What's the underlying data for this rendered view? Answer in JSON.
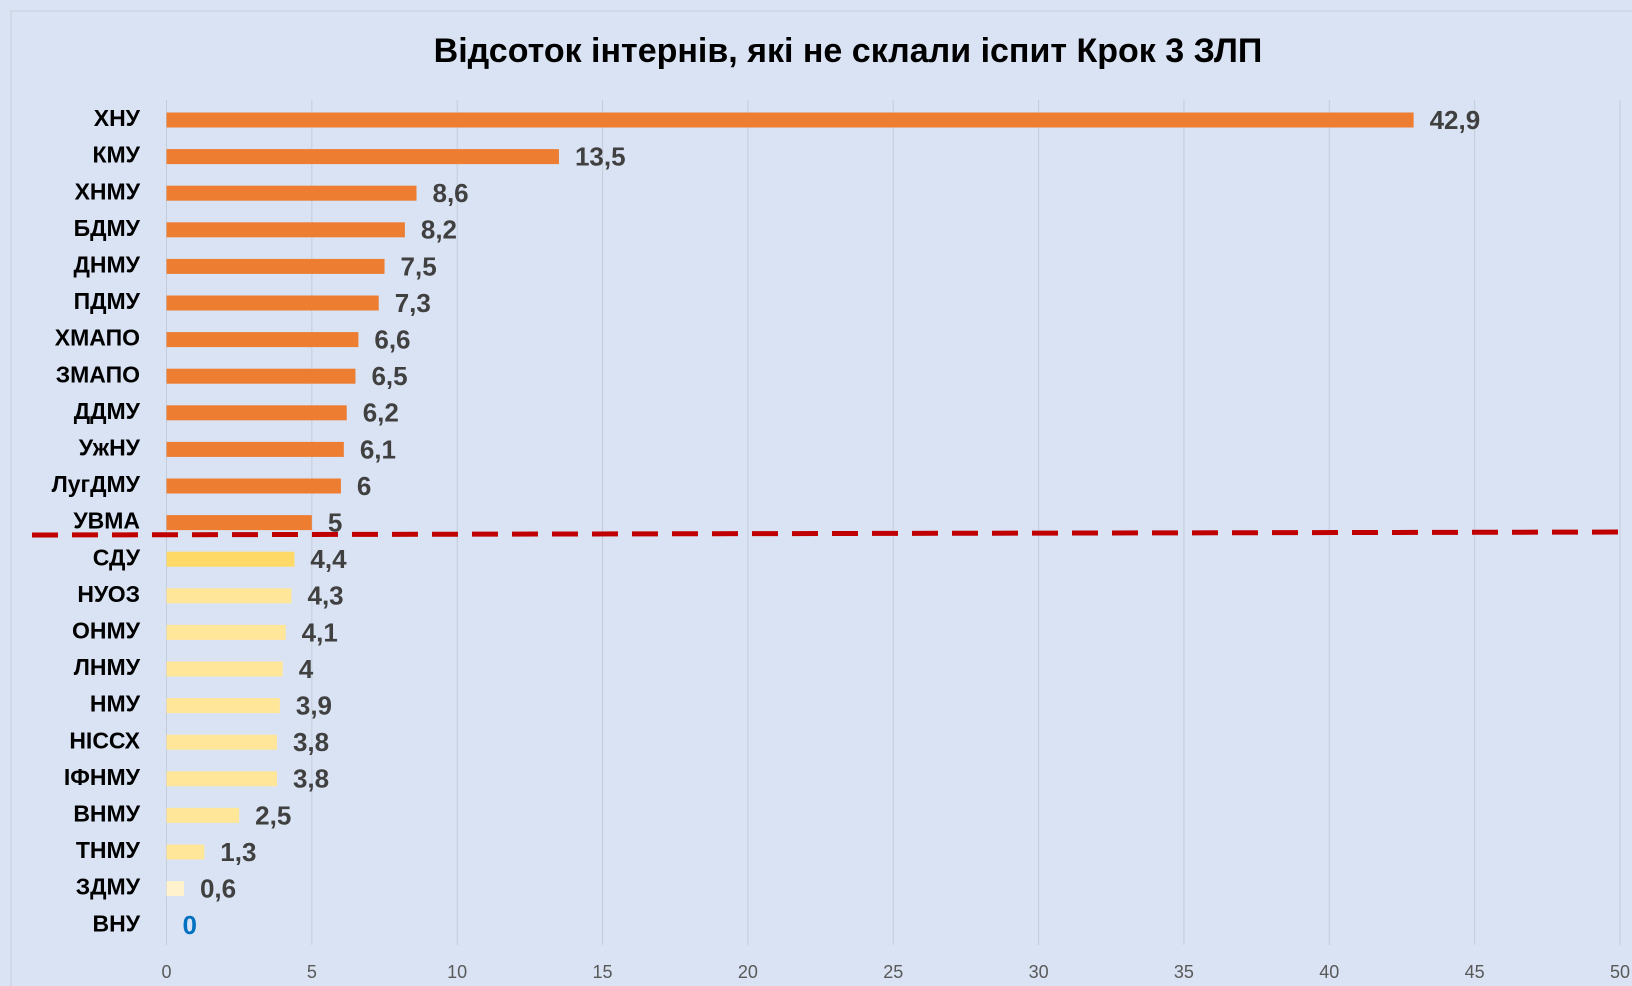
{
  "chart_data": {
    "type": "hbar",
    "title": "Відсоток інтернів, які не склали іспит Крок 3 ЗЛП",
    "categories": [
      "ХНУ",
      "КМУ",
      "ХНМУ",
      "БДМУ",
      "ДНМУ",
      "ПДМУ",
      "ХМАПО",
      "ЗМАПО",
      "ДДМУ",
      "УжНУ",
      "ЛугДМУ",
      "УВМА",
      "СДУ",
      "НУОЗ",
      "ОНМУ",
      "ЛНМУ",
      "НМУ",
      "НІССХ",
      "ІФНМУ",
      "ВНМУ",
      "ТНМУ",
      "ЗДМУ",
      "ВНУ"
    ],
    "values": [
      42.9,
      13.5,
      8.6,
      8.2,
      7.5,
      7.3,
      6.6,
      6.5,
      6.2,
      6.1,
      6,
      5,
      4.4,
      4.3,
      4.1,
      4,
      3.9,
      3.8,
      3.8,
      2.5,
      1.3,
      0.6,
      0
    ],
    "value_labels": [
      "42,9",
      "13,5",
      "8,6",
      "8,2",
      "7,5",
      "7,3",
      "6,6",
      "6,5",
      "6,2",
      "6,1",
      "6",
      "5",
      "4,4",
      "4,3",
      "4,1",
      "4",
      "3,9",
      "3,8",
      "3,8",
      "2,5",
      "1,3",
      "0,6",
      "0"
    ],
    "colors": [
      "#ed7d31",
      "#ed7d31",
      "#ed7d31",
      "#ed7d31",
      "#ed7d31",
      "#ed7d31",
      "#ed7d31",
      "#ed7d31",
      "#ed7d31",
      "#ed7d31",
      "#ed7d31",
      "#ed7d31",
      "#ffd966",
      "#ffe699",
      "#ffe699",
      "#ffe699",
      "#ffe699",
      "#ffe699",
      "#ffe699",
      "#ffe699",
      "#ffe699",
      "#fff2cc",
      "#fff2cc"
    ],
    "value_label_colors": [
      "#404040",
      "#404040",
      "#404040",
      "#404040",
      "#404040",
      "#404040",
      "#404040",
      "#404040",
      "#404040",
      "#404040",
      "#404040",
      "#404040",
      "#404040",
      "#404040",
      "#404040",
      "#404040",
      "#404040",
      "#404040",
      "#404040",
      "#404040",
      "#404040",
      "#404040",
      "#0070c0"
    ],
    "xlim": [
      0,
      50
    ],
    "xticks": [
      0,
      5,
      10,
      15,
      20,
      25,
      30,
      35,
      40,
      45,
      50
    ],
    "grid": true
  }
}
